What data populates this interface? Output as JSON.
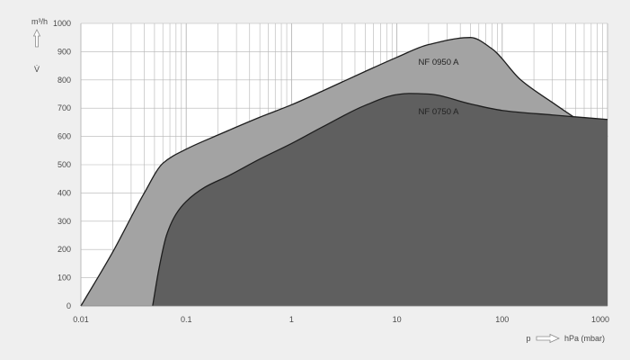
{
  "chart_data": {
    "type": "area",
    "x_scale": "log",
    "xlim": [
      0.01,
      1000
    ],
    "ylim": [
      0,
      1000
    ],
    "y_ticks": [
      "0",
      "100",
      "200",
      "300",
      "400",
      "500",
      "600",
      "700",
      "800",
      "900",
      "1000"
    ],
    "x_ticks": [
      "0.01",
      "0.1",
      "1",
      "10",
      "100",
      "1000"
    ],
    "ylabel_unit": "m³/h",
    "ylabel_symbol": "V̇",
    "xlabel_symbol": "p",
    "xlabel_unit": "hPa (mbar)",
    "grid": true,
    "colors": {
      "background": "#efefef",
      "plot_area": "#ffffff",
      "grid": "#b5b5b5",
      "nf0950": "#a3a3a3",
      "nf0750": "#5f5f5f",
      "outline": "#1e1e1e"
    },
    "series": [
      {
        "name": "NF 0950 A",
        "x": [
          0.01,
          0.02,
          0.04,
          0.06,
          0.1,
          0.2,
          0.5,
          1,
          2,
          5,
          10,
          20,
          50,
          80,
          150,
          300,
          700,
          1000
        ],
        "y": [
          0,
          190,
          400,
          505,
          555,
          605,
          668,
          712,
          762,
          830,
          880,
          925,
          950,
          910,
          800,
          720,
          630,
          600
        ]
      },
      {
        "name": "NF 0750 A",
        "x": [
          0.048,
          0.055,
          0.065,
          0.08,
          0.1,
          0.15,
          0.25,
          0.5,
          1,
          2,
          5,
          10,
          13,
          20,
          50,
          100,
          300,
          1000
        ],
        "y": [
          0,
          130,
          250,
          325,
          370,
          420,
          460,
          520,
          575,
          635,
          710,
          748,
          752,
          750,
          715,
          692,
          676,
          660
        ]
      }
    ]
  }
}
